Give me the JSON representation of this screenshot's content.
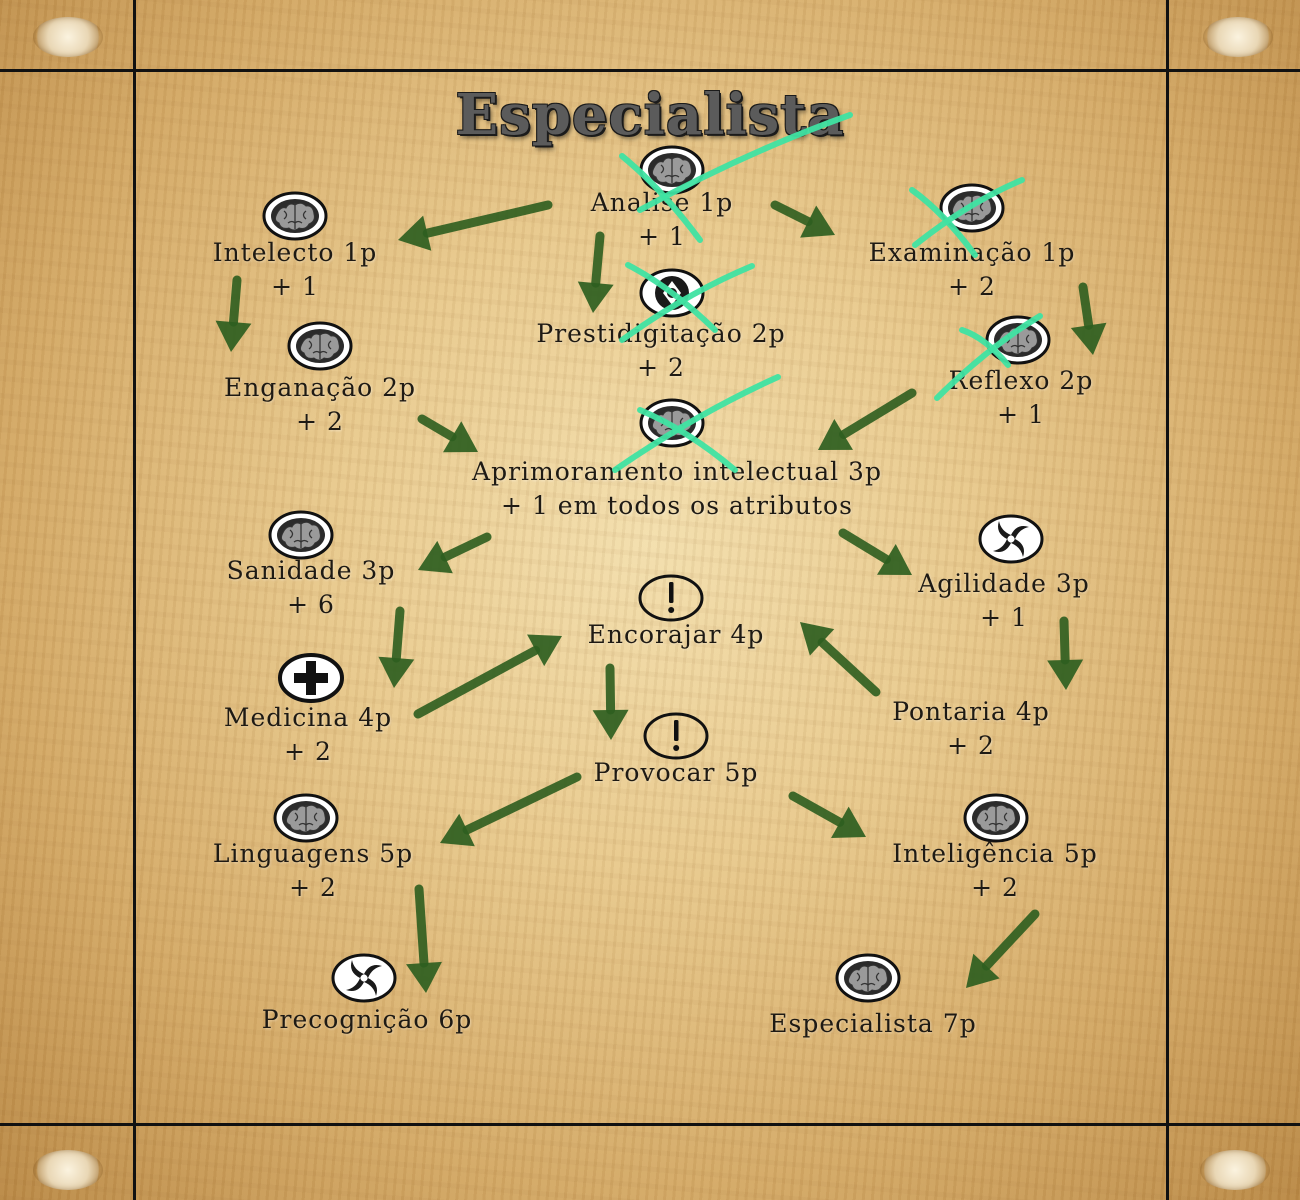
{
  "title": "Especialista",
  "nodes": [
    {
      "label": "Intelecto 1p",
      "bonus": "+ 1",
      "icon": "brain-icon"
    },
    {
      "label": "Analise 1p",
      "bonus": "+ 1",
      "icon": "brain-icon",
      "crossed": true
    },
    {
      "label": "Examinação 1p",
      "bonus": "+ 2",
      "icon": "brain-icon",
      "crossed": true
    },
    {
      "label": "Enganação 2p",
      "bonus": "+ 2",
      "icon": "brain-icon"
    },
    {
      "label": "Prestidigitação 2p",
      "bonus": "+ 2",
      "icon": "target-icon",
      "crossed": true
    },
    {
      "label": "Reflexo 2p",
      "bonus": "+ 1",
      "icon": "brain-icon",
      "crossed": true
    },
    {
      "label": "Aprimoramento intelectual 3p",
      "bonus": "+ 1 em todos os atributos",
      "icon": "brain-icon",
      "crossed": true
    },
    {
      "label": "Sanidade 3p",
      "bonus": "+ 6",
      "icon": "brain-icon"
    },
    {
      "label": "Agilidade 3p",
      "bonus": "+ 1",
      "icon": "shuriken-icon"
    },
    {
      "label": "Encorajar 4p",
      "icon": "exclamation-icon"
    },
    {
      "label": "Medicina 4p",
      "bonus": "+ 2",
      "icon": "plus-icon"
    },
    {
      "label": "Pontaria 4p",
      "bonus": "+ 2"
    },
    {
      "label": "Provocar 5p",
      "icon": "exclamation-icon"
    },
    {
      "label": "Linguagens 5p",
      "bonus": "+ 2",
      "icon": "brain-icon"
    },
    {
      "label": "Inteligência 5p",
      "bonus": "+ 2",
      "icon": "brain-icon"
    },
    {
      "label": "Precognição 6p",
      "icon": "shuriken-icon"
    },
    {
      "label": "Especialista 7p",
      "icon": "brain-icon"
    }
  ],
  "colors": {
    "arrow": "#2e5e1f",
    "cross_mark": "#3fe3a2",
    "frame": "#111111",
    "text": "#1e1a14"
  }
}
